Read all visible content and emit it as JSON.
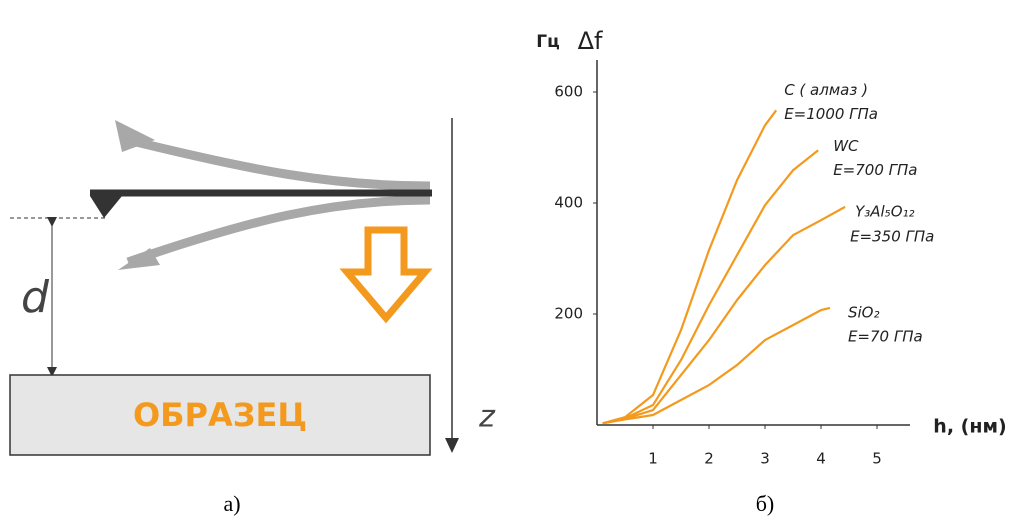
{
  "diagram": {
    "d_label": "d",
    "z_label": "z",
    "sample_label": "ОБРАЗЕЦ",
    "caption": "а)"
  },
  "chart_data": {
    "type": "line",
    "caption": "б)",
    "y_label_unit": "Гц",
    "y_label": "Δf",
    "x_label": "h, (нм)",
    "xlim": [
      0,
      5.6
    ],
    "ylim": [
      0,
      650
    ],
    "xticks": [
      1,
      2,
      3,
      4,
      5
    ],
    "yticks": [
      200,
      400,
      600
    ],
    "grid": false,
    "series": [
      {
        "name": "C ( алмаз )",
        "annotation": "E=1000 ГПа",
        "color": "#f39a1e",
        "x": [
          0.1,
          0.5,
          1,
          1.5,
          2,
          2.5,
          3,
          3.2
        ],
        "values": [
          3,
          14,
          54,
          171,
          315,
          441,
          540,
          567
        ]
      },
      {
        "name": "WC",
        "annotation": "E=700 ГПа",
        "color": "#f39a1e",
        "x": [
          0.1,
          0.5,
          1,
          1.5,
          2,
          2.5,
          3,
          3.5,
          3.95
        ],
        "values": [
          3,
          12,
          36,
          117,
          216,
          306,
          396,
          459,
          495
        ]
      },
      {
        "name": "Y₃Al₅O₁₂",
        "annotation": "E=350 ГПа",
        "color": "#f39a1e",
        "x": [
          0.1,
          0.5,
          1,
          1.5,
          2,
          2.5,
          3,
          3.5,
          4,
          4.43
        ],
        "values": [
          3,
          11,
          27,
          90,
          153,
          225,
          288,
          342,
          369,
          393
        ]
      },
      {
        "name": "SiO₂",
        "annotation": "E=70 ГПа",
        "color": "#f39a1e",
        "x": [
          0.1,
          0.5,
          1,
          1.5,
          2,
          2.5,
          3,
          3.5,
          4,
          4.16
        ],
        "values": [
          3,
          10,
          18,
          45,
          72,
          108,
          153,
          180,
          207,
          211
        ]
      }
    ]
  }
}
